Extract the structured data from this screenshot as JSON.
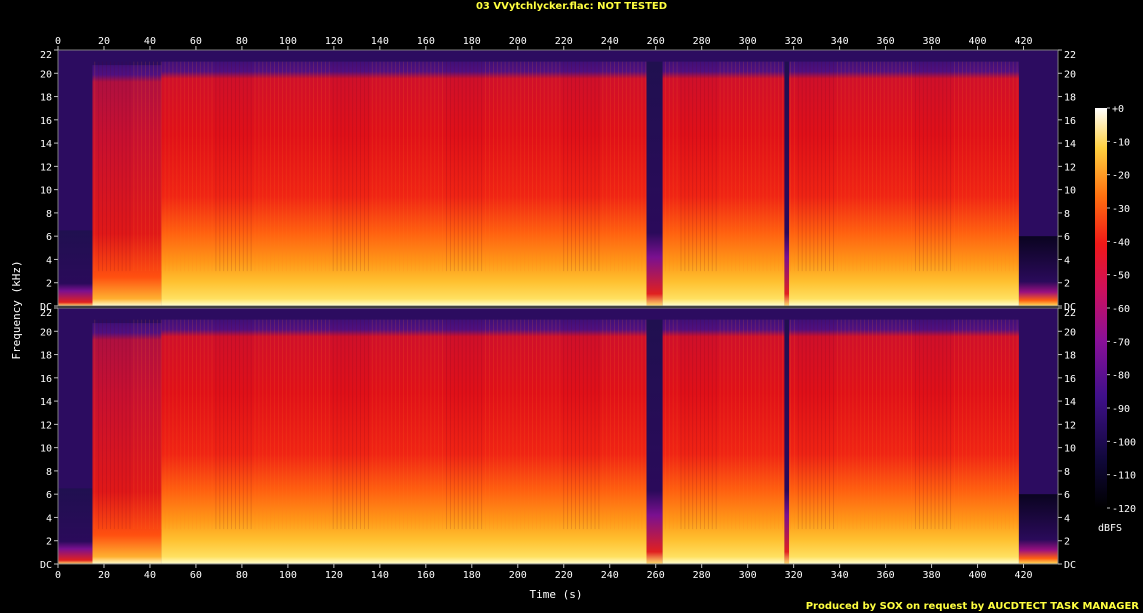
{
  "title": "03 VVytchlycker.flac: NOT TESTED",
  "footer": "Produced by SOX on request by AUCDTECT TASK MANAGER",
  "chart_data": {
    "type": "heatmap",
    "xlabel": "Time (s)",
    "ylabel": "Frequency (kHz)",
    "colorbar_label": "dBFS",
    "x_ticks": [
      "0",
      "20",
      "40",
      "60",
      "80",
      "100",
      "120",
      "140",
      "160",
      "180",
      "200",
      "220",
      "240",
      "260",
      "280",
      "300",
      "320",
      "340",
      "360",
      "380",
      "400",
      "420"
    ],
    "x_tick_values": [
      0,
      20,
      40,
      60,
      80,
      100,
      120,
      140,
      160,
      180,
      200,
      220,
      240,
      260,
      280,
      300,
      320,
      340,
      360,
      380,
      400,
      420
    ],
    "xlim": [
      0,
      435
    ],
    "y_ticks": [
      "DC",
      "2",
      "4",
      "6",
      "8",
      "10",
      "12",
      "14",
      "16",
      "18",
      "20",
      "22"
    ],
    "y_tick_values": [
      0,
      2,
      4,
      6,
      8,
      10,
      12,
      14,
      16,
      18,
      20,
      22
    ],
    "ylim": [
      0,
      22
    ],
    "colorbar_ticks": [
      "+0",
      "-10",
      "-20",
      "-30",
      "-40",
      "-50",
      "-60",
      "-70",
      "-80",
      "-90",
      "-100",
      "-110",
      "-120"
    ],
    "colorbar_values": [
      0,
      -10,
      -20,
      -30,
      -40,
      -50,
      -60,
      -70,
      -80,
      -90,
      -100,
      -110,
      -120
    ],
    "colorbar_range": [
      -120,
      0
    ],
    "channels": 2,
    "colors": {
      "title": "#ffff40",
      "background": "#000000",
      "quiet": "#3a1470",
      "mid": "#e01018",
      "loud": "#ffe060",
      "peak": "#ffffe0"
    },
    "segments": [
      {
        "t_start": 0,
        "t_end": 15,
        "level": "quiet-intro",
        "cutoff_khz": 6.5
      },
      {
        "t_start": 15,
        "t_end": 45,
        "level": "medium",
        "cutoff_khz": 20.7
      },
      {
        "t_start": 45,
        "t_end": 256,
        "level": "loud",
        "cutoff_khz": 21.0
      },
      {
        "t_start": 256,
        "t_end": 263,
        "level": "quiet",
        "cutoff_khz": 21.0
      },
      {
        "t_start": 263,
        "t_end": 316,
        "level": "loud",
        "cutoff_khz": 21.0
      },
      {
        "t_start": 316,
        "t_end": 318,
        "level": "quiet",
        "cutoff_khz": 21.0
      },
      {
        "t_start": 318,
        "t_end": 418,
        "level": "loud",
        "cutoff_khz": 21.0
      },
      {
        "t_start": 418,
        "t_end": 435,
        "level": "fade-out",
        "cutoff_khz": 6.0
      }
    ]
  }
}
